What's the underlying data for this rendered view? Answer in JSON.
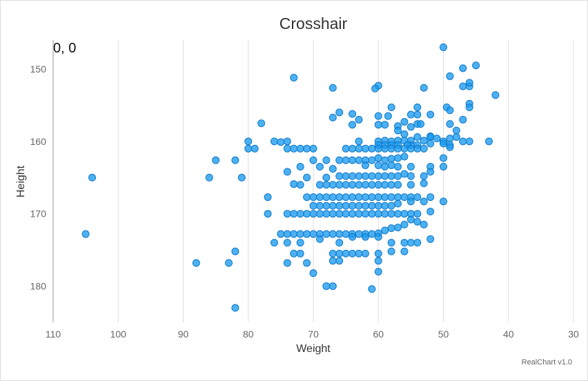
{
  "chart_data": {
    "type": "scatter",
    "title": "Crosshair",
    "xlabel": "Weight",
    "ylabel": "Height",
    "xlim": [
      110,
      30
    ],
    "ylim": [
      146,
      185
    ],
    "x_reversed": true,
    "y_reversed": true,
    "x_ticks": [
      110,
      100,
      90,
      80,
      70,
      60,
      50,
      40,
      30
    ],
    "y_ticks": [
      150,
      160,
      170,
      180
    ],
    "grid": "vertical",
    "crosshair_readout": "0, 0",
    "credit": "RealChart v1.0",
    "colors": {
      "point_fill": "#1a9bf0",
      "point_stroke": "#1178c8"
    },
    "points": [
      [
        50,
        147
      ],
      [
        45,
        149.5
      ],
      [
        47,
        149.9
      ],
      [
        49,
        151
      ],
      [
        73,
        151.2
      ],
      [
        47,
        152.4
      ],
      [
        46,
        152.4
      ],
      [
        46,
        151.9
      ],
      [
        53,
        152.6
      ],
      [
        67,
        152.6
      ],
      [
        60,
        152.3
      ],
      [
        60.5,
        152.7
      ],
      [
        42,
        153.6
      ],
      [
        46,
        154.8
      ],
      [
        49.5,
        155.3
      ],
      [
        46,
        155.3
      ],
      [
        58,
        155.3
      ],
      [
        54,
        155.3
      ],
      [
        49,
        155.7
      ],
      [
        66,
        156
      ],
      [
        60,
        156.5
      ],
      [
        58.5,
        156.5
      ],
      [
        64,
        156.2
      ],
      [
        54,
        156.3
      ],
      [
        52,
        156.3
      ],
      [
        55,
        156.3
      ],
      [
        67,
        156.7
      ],
      [
        47,
        157
      ],
      [
        63,
        157
      ],
      [
        49,
        157.6
      ],
      [
        78,
        157.5
      ],
      [
        57,
        157.9
      ],
      [
        60,
        157.7
      ],
      [
        59,
        157.7
      ],
      [
        56,
        157.3
      ],
      [
        54,
        157.6
      ],
      [
        53.5,
        157.6
      ],
      [
        55,
        158
      ],
      [
        64,
        157.7
      ],
      [
        48,
        158.5
      ],
      [
        56,
        159
      ],
      [
        57,
        158.5
      ],
      [
        52,
        159.3
      ],
      [
        52,
        159.4
      ],
      [
        54,
        159.4
      ],
      [
        50,
        160
      ],
      [
        48,
        159.4
      ],
      [
        49,
        159.6
      ],
      [
        51,
        159.6
      ],
      [
        53,
        159.9
      ],
      [
        55,
        159.9
      ],
      [
        56,
        159.9
      ],
      [
        57,
        159.9
      ],
      [
        58,
        160
      ],
      [
        59,
        159.9
      ],
      [
        60,
        160
      ],
      [
        63,
        160
      ],
      [
        76,
        160
      ],
      [
        75,
        160.1
      ],
      [
        74,
        160
      ],
      [
        80,
        160
      ],
      [
        43,
        160
      ],
      [
        46,
        160
      ],
      [
        47,
        160
      ],
      [
        49,
        160.5
      ],
      [
        50,
        160.3
      ],
      [
        52,
        160.3
      ],
      [
        54,
        160.5
      ],
      [
        55,
        160.5
      ],
      [
        55.5,
        160.5
      ],
      [
        57,
        160.5
      ],
      [
        58,
        160.5
      ],
      [
        59,
        160.5
      ],
      [
        60,
        160.5
      ],
      [
        49,
        160.8
      ],
      [
        53,
        161
      ],
      [
        54,
        161
      ],
      [
        55,
        161
      ],
      [
        56,
        161
      ],
      [
        57,
        161
      ],
      [
        58,
        161
      ],
      [
        59,
        161
      ],
      [
        60,
        161
      ],
      [
        61,
        161
      ],
      [
        62,
        161
      ],
      [
        63,
        161
      ],
      [
        64,
        161
      ],
      [
        65,
        161
      ],
      [
        70,
        161
      ],
      [
        71,
        161
      ],
      [
        72,
        161
      ],
      [
        73,
        161
      ],
      [
        74,
        161
      ],
      [
        79,
        161
      ],
      [
        80,
        161
      ],
      [
        50,
        162.3
      ],
      [
        56,
        162.1
      ],
      [
        57,
        162.3
      ],
      [
        58,
        162.4
      ],
      [
        59,
        162.6
      ],
      [
        60,
        162.3
      ],
      [
        61,
        162.6
      ],
      [
        62,
        162.6
      ],
      [
        63,
        162.6
      ],
      [
        64,
        162.6
      ],
      [
        65,
        162.6
      ],
      [
        66,
        162.6
      ],
      [
        68,
        162.6
      ],
      [
        70,
        162.6
      ],
      [
        82,
        162.6
      ],
      [
        85,
        162.6
      ],
      [
        50,
        163.5
      ],
      [
        52,
        163.5
      ],
      [
        55,
        163.5
      ],
      [
        57,
        163.5
      ],
      [
        58,
        163.3
      ],
      [
        59,
        163.5
      ],
      [
        60,
        163.3
      ],
      [
        62,
        163.3
      ],
      [
        67,
        163.8
      ],
      [
        69,
        163.5
      ],
      [
        72,
        163.5
      ],
      [
        74,
        164.2
      ],
      [
        52,
        164.2
      ],
      [
        53,
        164.8
      ],
      [
        55,
        164.8
      ],
      [
        56,
        164.5
      ],
      [
        57,
        164.8
      ],
      [
        58,
        164.8
      ],
      [
        59,
        164.8
      ],
      [
        60,
        164.8
      ],
      [
        61,
        164.8
      ],
      [
        62,
        164.8
      ],
      [
        63,
        164.8
      ],
      [
        64,
        164.8
      ],
      [
        65,
        164.8
      ],
      [
        66,
        164.8
      ],
      [
        68,
        165
      ],
      [
        71,
        165
      ],
      [
        86,
        165
      ],
      [
        81,
        165
      ],
      [
        104,
        165
      ],
      [
        53,
        165.8
      ],
      [
        55,
        166
      ],
      [
        57,
        166
      ],
      [
        58,
        166
      ],
      [
        59,
        166
      ],
      [
        60,
        166
      ],
      [
        61,
        166
      ],
      [
        62,
        166
      ],
      [
        63,
        166
      ],
      [
        64,
        166
      ],
      [
        65,
        166
      ],
      [
        66,
        166
      ],
      [
        67,
        166
      ],
      [
        68,
        166
      ],
      [
        69,
        166
      ],
      [
        72,
        166
      ],
      [
        73,
        165.9
      ],
      [
        50,
        168.3
      ],
      [
        52,
        167.7
      ],
      [
        54,
        167.7
      ],
      [
        55,
        167.7
      ],
      [
        56,
        167.7
      ],
      [
        57,
        167.7
      ],
      [
        58,
        167.7
      ],
      [
        59,
        167.7
      ],
      [
        60,
        167.7
      ],
      [
        61,
        167.7
      ],
      [
        62,
        167.7
      ],
      [
        63,
        167.7
      ],
      [
        64,
        167.7
      ],
      [
        65,
        167.7
      ],
      [
        66,
        167.7
      ],
      [
        67,
        167.7
      ],
      [
        68,
        167.7
      ],
      [
        69,
        167.7
      ],
      [
        70,
        167.7
      ],
      [
        71,
        167.7
      ],
      [
        77,
        167.7
      ],
      [
        53,
        168.3
      ],
      [
        55,
        168.3
      ],
      [
        57,
        168.6
      ],
      [
        58,
        168.9
      ],
      [
        59,
        168.9
      ],
      [
        60,
        168.9
      ],
      [
        61,
        168.9
      ],
      [
        62,
        168.9
      ],
      [
        63,
        168.9
      ],
      [
        64,
        168.9
      ],
      [
        65,
        168.9
      ],
      [
        66,
        168.9
      ],
      [
        67,
        168.9
      ],
      [
        68,
        168.9
      ],
      [
        69,
        168.9
      ],
      [
        70,
        168.9
      ],
      [
        52,
        169.7
      ],
      [
        54,
        170
      ],
      [
        55,
        170
      ],
      [
        56,
        170
      ],
      [
        57,
        170
      ],
      [
        58,
        170
      ],
      [
        59,
        170
      ],
      [
        60,
        170
      ],
      [
        61,
        170
      ],
      [
        62,
        170
      ],
      [
        63,
        170
      ],
      [
        64,
        170
      ],
      [
        65,
        170
      ],
      [
        66,
        170
      ],
      [
        67,
        170
      ],
      [
        68,
        170
      ],
      [
        69,
        170
      ],
      [
        70,
        170
      ],
      [
        71,
        170
      ],
      [
        72,
        170
      ],
      [
        73,
        170
      ],
      [
        74,
        170
      ],
      [
        77,
        170
      ],
      [
        53,
        171.5
      ],
      [
        54,
        171.1
      ],
      [
        55,
        170.8
      ],
      [
        56,
        171.5
      ],
      [
        57,
        171.9
      ],
      [
        58,
        172
      ],
      [
        59,
        172.3
      ],
      [
        60,
        172.7
      ],
      [
        61,
        172.8
      ],
      [
        62,
        172.8
      ],
      [
        63,
        172.8
      ],
      [
        64,
        172.8
      ],
      [
        65,
        172.8
      ],
      [
        66,
        172.8
      ],
      [
        67,
        172.8
      ],
      [
        68,
        172.8
      ],
      [
        69,
        172.8
      ],
      [
        70,
        172.8
      ],
      [
        71,
        172.8
      ],
      [
        72,
        172.8
      ],
      [
        73,
        172.8
      ],
      [
        74,
        172.8
      ],
      [
        75,
        172.8
      ],
      [
        52,
        173.5
      ],
      [
        54,
        174
      ],
      [
        55,
        174
      ],
      [
        56,
        174
      ],
      [
        58,
        174
      ],
      [
        60,
        173.2
      ],
      [
        62,
        173.2
      ],
      [
        64,
        173.2
      ],
      [
        66,
        174
      ],
      [
        69,
        173.5
      ],
      [
        72,
        174
      ],
      [
        74,
        174
      ],
      [
        76,
        174
      ],
      [
        105,
        172.8
      ],
      [
        56,
        175.2
      ],
      [
        58,
        175.2
      ],
      [
        60,
        175.5
      ],
      [
        62,
        175.5
      ],
      [
        63,
        175.5
      ],
      [
        64,
        175.5
      ],
      [
        65,
        175.5
      ],
      [
        66,
        175.5
      ],
      [
        67,
        175.5
      ],
      [
        72,
        175.5
      ],
      [
        73,
        175.5
      ],
      [
        82,
        175.2
      ],
      [
        60,
        176.5
      ],
      [
        66,
        176.5
      ],
      [
        67,
        176.5
      ],
      [
        71,
        176.8
      ],
      [
        74,
        176.8
      ],
      [
        83,
        176.8
      ],
      [
        88,
        176.8
      ],
      [
        60,
        178
      ],
      [
        70,
        178.2
      ],
      [
        67,
        180
      ],
      [
        68,
        180
      ],
      [
        61,
        180.4
      ],
      [
        82,
        183
      ]
    ]
  }
}
